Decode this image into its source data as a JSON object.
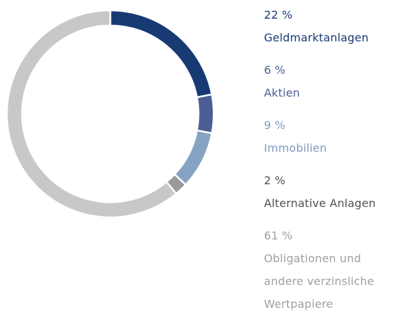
{
  "chart_data": {
    "type": "donut",
    "series": [
      {
        "name": "Geldmarktanlagen",
        "color": "#173a73",
        "label_color": "#173a73",
        "values": [
          22
        ],
        "value_labels": [
          "22 %"
        ]
      },
      {
        "name": "Aktien",
        "color": "#4a5e94",
        "label_color": "#4a5e94",
        "values": [
          6
        ],
        "value_labels": [
          "6 %"
        ]
      },
      {
        "name": "Immobilien",
        "color": "#87a3c4",
        "label_color": "#7f9bbf",
        "values": [
          9
        ],
        "value_labels": [
          "9 %"
        ]
      },
      {
        "name": "Alternative Anlagen",
        "color": "#9a9a9a",
        "label_color": "#505050",
        "values": [
          2
        ],
        "value_labels": [
          "2 %"
        ]
      },
      {
        "name": "Obligationen und andere verzinsliche Wertpapiere",
        "color": "#c8c8c8",
        "label_color": "#a0a0a0",
        "values": [
          61
        ],
        "value_labels": [
          "61 %"
        ]
      }
    ]
  }
}
